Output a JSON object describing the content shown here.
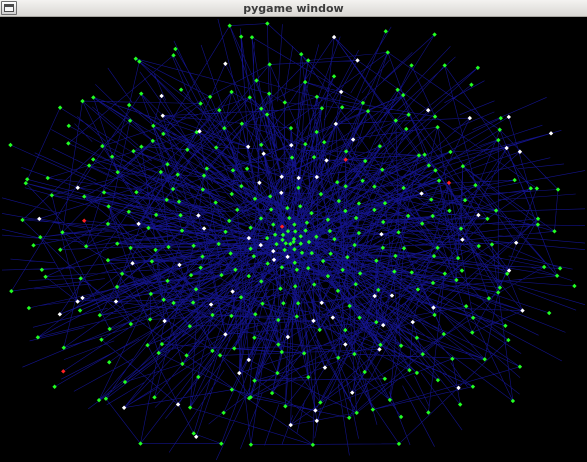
{
  "window": {
    "title": "pygame window",
    "menu_icon": "window-glyph-icon"
  },
  "canvas": {
    "background": "#000000",
    "edge_color": "#1a1ab8",
    "node_colors": {
      "green": "#22ff22",
      "white": "#ffffff",
      "red": "#ff2222"
    },
    "node_shape": "diamond"
  }
}
